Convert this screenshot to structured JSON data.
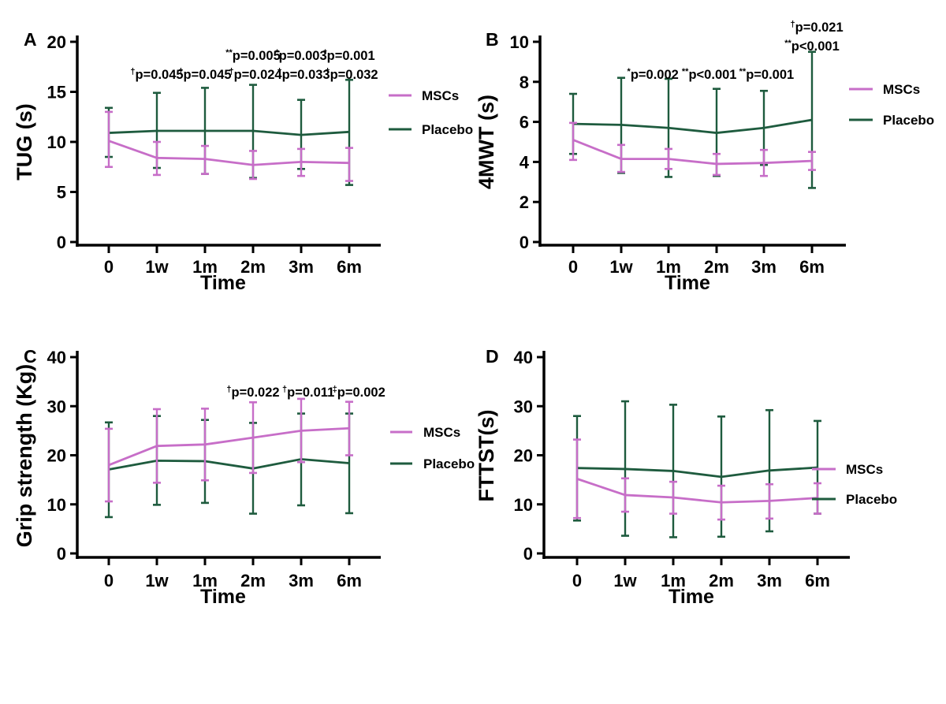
{
  "figure": {
    "colors": {
      "mscs": "#C76EC8",
      "placebo": "#1E5B3E",
      "axis": "#000000",
      "text": "#000000"
    },
    "legend_items": [
      "MSCs",
      "Placebo"
    ]
  },
  "chart_data": [
    {
      "id": "A",
      "type": "line",
      "panel_label": "A",
      "ylabel": "TUG (s)",
      "xlabel": "Time",
      "ylim": [
        0,
        20
      ],
      "yticks": [
        0,
        5,
        10,
        15,
        20
      ],
      "categories": [
        "0",
        "1w",
        "1m",
        "2m",
        "3m",
        "6m"
      ],
      "legend_position": "right",
      "grid": false,
      "series": [
        {
          "name": "MSCs",
          "color_key": "mscs",
          "values": [
            10.1,
            8.4,
            8.3,
            7.7,
            8.0,
            7.9
          ],
          "err_lo": [
            7.5,
            6.7,
            6.8,
            6.3,
            6.6,
            6.1
          ],
          "err_hi": [
            13.0,
            10.0,
            9.6,
            9.1,
            9.3,
            9.4
          ]
        },
        {
          "name": "Placebo",
          "color_key": "placebo",
          "values": [
            10.9,
            11.1,
            11.1,
            11.1,
            10.7,
            11.0
          ],
          "err_lo": [
            8.5,
            7.4,
            6.8,
            6.4,
            7.3,
            5.7
          ],
          "err_hi": [
            13.4,
            14.9,
            15.4,
            15.7,
            14.2,
            16.2
          ]
        }
      ],
      "annotations": [
        {
          "sup": "†",
          "text": "p=0.045",
          "at": 1,
          "row": 0
        },
        {
          "sup": "†",
          "text": "p=0.045",
          "at": 2,
          "row": 0
        },
        {
          "sup": "†",
          "text": "p=0.024",
          "at": 3.05,
          "row": 0
        },
        {
          "sup": "†",
          "text": "p=0.033",
          "at": 4.05,
          "row": 0
        },
        {
          "sup": "†",
          "text": "p=0.032",
          "at": 5.05,
          "row": 0
        },
        {
          "sup": "**",
          "text": "p=0.005",
          "at": 3,
          "row": 1
        },
        {
          "sup": "*",
          "text": "p=0.003",
          "at": 4,
          "row": 1
        },
        {
          "sup": "*",
          "text": "p=0.001",
          "at": 5,
          "row": 1
        }
      ]
    },
    {
      "id": "B",
      "type": "line",
      "panel_label": "B",
      "ylabel": "4MWT (s)",
      "xlabel": "Time",
      "ylim": [
        0,
        10
      ],
      "yticks": [
        0,
        2,
        4,
        6,
        8,
        10
      ],
      "categories": [
        "0",
        "1w",
        "1m",
        "2m",
        "3m",
        "6m"
      ],
      "legend_position": "right",
      "grid": false,
      "series": [
        {
          "name": "MSCs",
          "color_key": "mscs",
          "values": [
            5.1,
            4.15,
            4.15,
            3.9,
            3.95,
            4.05
          ],
          "err_lo": [
            4.1,
            3.5,
            3.65,
            3.35,
            3.3,
            3.6
          ],
          "err_hi": [
            5.95,
            4.85,
            4.65,
            4.4,
            4.6,
            4.5
          ]
        },
        {
          "name": "Placebo",
          "color_key": "placebo",
          "values": [
            5.9,
            5.85,
            5.7,
            5.45,
            5.7,
            6.1
          ],
          "err_lo": [
            4.4,
            3.45,
            3.25,
            3.3,
            3.85,
            2.7
          ],
          "err_hi": [
            7.4,
            8.2,
            8.15,
            7.65,
            7.55,
            9.5
          ]
        }
      ],
      "annotations": [
        {
          "sup": "*",
          "text": "p=0.002",
          "at": 1.67,
          "row": 0
        },
        {
          "sup": "**",
          "text": "p<0.001",
          "at": 2.85,
          "row": 0
        },
        {
          "sup": "**",
          "text": "p=0.001",
          "at": 4.05,
          "row": 0
        },
        {
          "sup": "†",
          "text": "p=0.021",
          "at": 5.1,
          "row": 1
        },
        {
          "sup": "**",
          "text": "p<0.001",
          "at": 5.0,
          "row": 2
        }
      ]
    },
    {
      "id": "C",
      "type": "line",
      "panel_label": "C",
      "ylabel": "Grip strength (Kg)",
      "xlabel": "Time",
      "ylim": [
        0,
        40
      ],
      "yticks": [
        0,
        10,
        20,
        30,
        40
      ],
      "categories": [
        "0",
        "1w",
        "1m",
        "2m",
        "3m",
        "6m"
      ],
      "legend_position": "right",
      "grid": false,
      "series": [
        {
          "name": "MSCs",
          "color_key": "mscs",
          "values": [
            18.0,
            21.9,
            22.2,
            23.6,
            25.0,
            25.5
          ],
          "err_lo": [
            10.6,
            14.4,
            14.9,
            16.4,
            18.6,
            20.0
          ],
          "err_hi": [
            25.4,
            29.4,
            29.5,
            30.8,
            31.5,
            30.9
          ]
        },
        {
          "name": "Placebo",
          "color_key": "placebo",
          "values": [
            17.1,
            18.9,
            18.8,
            17.3,
            19.2,
            18.4
          ],
          "err_lo": [
            7.4,
            9.9,
            10.3,
            8.1,
            9.8,
            8.2
          ],
          "err_hi": [
            26.7,
            28.0,
            27.2,
            26.6,
            28.5,
            28.5
          ]
        }
      ],
      "annotations": [
        {
          "sup": "†",
          "text": "p=0.022",
          "at": 3.0,
          "row": 0
        },
        {
          "sup": "†",
          "text": "p=0.011",
          "at": 4.15,
          "row": 0
        },
        {
          "sup": "‡",
          "text": "p=0.002",
          "at": 5.2,
          "row": 0
        }
      ]
    },
    {
      "id": "D",
      "type": "line",
      "panel_label": "D",
      "ylabel": "FTTST(s)",
      "xlabel": "Time",
      "ylim": [
        0,
        40
      ],
      "yticks": [
        0,
        10,
        20,
        30,
        40
      ],
      "categories": [
        "0",
        "1w",
        "1m",
        "2m",
        "3m",
        "6m"
      ],
      "legend_position": "right",
      "grid": false,
      "series": [
        {
          "name": "MSCs",
          "color_key": "mscs",
          "values": [
            15.2,
            11.9,
            11.4,
            10.4,
            10.7,
            11.3
          ],
          "err_lo": [
            7.2,
            8.5,
            8.1,
            6.9,
            7.1,
            8.1
          ],
          "err_hi": [
            23.2,
            15.3,
            14.6,
            13.8,
            14.1,
            14.3
          ]
        },
        {
          "name": "Placebo",
          "color_key": "placebo",
          "values": [
            17.4,
            17.2,
            16.8,
            15.6,
            16.9,
            17.5
          ],
          "err_lo": [
            6.7,
            3.6,
            3.3,
            3.4,
            4.5,
            8.1
          ],
          "err_hi": [
            28.0,
            31.0,
            30.3,
            27.9,
            29.2,
            27.0
          ]
        }
      ],
      "annotations": []
    }
  ]
}
